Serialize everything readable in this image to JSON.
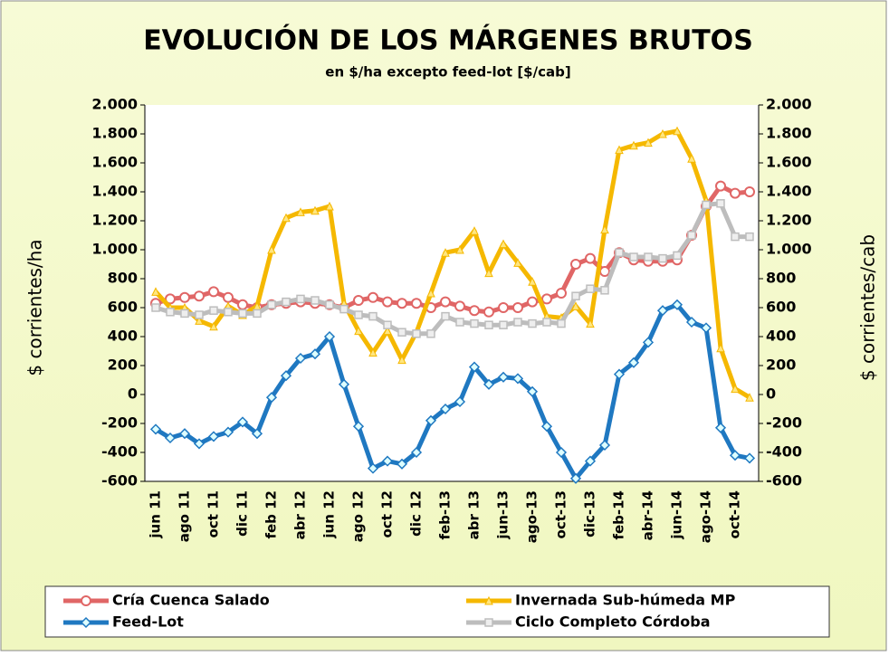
{
  "chart_data": {
    "type": "line",
    "title": "EVOLUCIÓN DE LOS MÁRGENES BRUTOS",
    "subtitle": "en $/ha excepto feed-lot [$/cab]",
    "ylabel": "$ corrientes/ha",
    "y2label": "$ corrientes/cab",
    "categories": [
      "jun 11",
      null,
      "ago 11",
      null,
      "oct 11",
      null,
      "dic 11",
      null,
      "feb 12",
      null,
      "abr 12",
      null,
      "jun 12",
      null,
      "ago 12",
      null,
      "oct 12",
      null,
      "dic 12",
      null,
      "feb-13",
      null,
      "abr 13",
      null,
      "jun-13",
      null,
      "ago-13",
      null,
      "oct-13",
      null,
      "dic-13",
      null,
      "feb-14",
      null,
      "abr-14",
      null,
      "jun-14",
      null,
      "ago-14",
      null,
      "oct-14",
      null
    ],
    "series": [
      {
        "name": "Cría Cuenca Salado",
        "color": "#e06666",
        "marker": "circle",
        "values": [
          630,
          660,
          670,
          680,
          710,
          670,
          620,
          600,
          620,
          630,
          640,
          630,
          620,
          600,
          650,
          670,
          640,
          630,
          630,
          600,
          640,
          610,
          580,
          570,
          600,
          600,
          640,
          660,
          700,
          900,
          940,
          850,
          980,
          930,
          920,
          920,
          930,
          1100,
          1300,
          1440,
          1390,
          1400
        ]
      },
      {
        "name": "Invernada Sub-húmeda MP",
        "color": "#f5b800",
        "marker": "dash",
        "values": [
          710,
          600,
          600,
          510,
          470,
          610,
          550,
          610,
          1000,
          1220,
          1260,
          1270,
          1300,
          630,
          440,
          290,
          440,
          240,
          430,
          700,
          980,
          1000,
          1130,
          840,
          1040,
          910,
          780,
          540,
          530,
          610,
          490,
          1140,
          1690,
          1720,
          1740,
          1800,
          1820,
          1630,
          1340,
          320,
          40,
          -20
        ]
      },
      {
        "name": "Feed-Lot",
        "color": "#1f78c1",
        "marker": "diamond",
        "axis": "y2",
        "values": [
          -240,
          -300,
          -270,
          -340,
          -290,
          -260,
          -190,
          -270,
          -20,
          130,
          250,
          280,
          400,
          70,
          -220,
          -510,
          -460,
          -480,
          -400,
          -180,
          -100,
          -50,
          190,
          70,
          120,
          110,
          20,
          -220,
          -400,
          -580,
          -460,
          -350,
          140,
          220,
          360,
          580,
          620,
          500,
          460,
          -230,
          -420,
          -440
        ]
      },
      {
        "name": "Ciclo Completo Córdoba",
        "color": "#bdbdbd",
        "marker": "square",
        "values": [
          600,
          570,
          560,
          550,
          580,
          570,
          560,
          560,
          620,
          640,
          660,
          650,
          620,
          590,
          550,
          540,
          480,
          430,
          420,
          420,
          540,
          500,
          490,
          480,
          480,
          500,
          490,
          500,
          490,
          680,
          730,
          720,
          980,
          950,
          950,
          940,
          960,
          1100,
          1310,
          1320,
          1090,
          1090
        ]
      }
    ],
    "ylim": [
      -600,
      2000
    ],
    "yticks": [
      -600,
      -400,
      -200,
      0,
      200,
      400,
      600,
      {
        "value": 800,
        "label": "800"
      },
      {
        "value": 1000,
        "label": "1.000"
      },
      {
        "value": 1200,
        "label": "1.200"
      },
      {
        "value": 1400,
        "label": "1.400"
      },
      {
        "value": 1600,
        "label": "1.600"
      },
      {
        "value": 1800,
        "label": "1.800"
      },
      {
        "value": 2000,
        "label": "2.000"
      }
    ],
    "y2lim": [
      -600,
      2000
    ],
    "y2ticks": [
      -600,
      -400,
      -200,
      0,
      200,
      400,
      600,
      {
        "value": 800,
        "label": "800"
      },
      {
        "value": 1000,
        "label": "1.000"
      },
      {
        "value": 1200,
        "label": "1.200"
      },
      {
        "value": 1400,
        "label": "1.400"
      },
      {
        "value": 1600,
        "label": "1.600"
      },
      {
        "value": 1800,
        "label": "1.800"
      },
      {
        "value": 2000,
        "label": "2.000"
      }
    ],
    "legend": "bottom"
  }
}
